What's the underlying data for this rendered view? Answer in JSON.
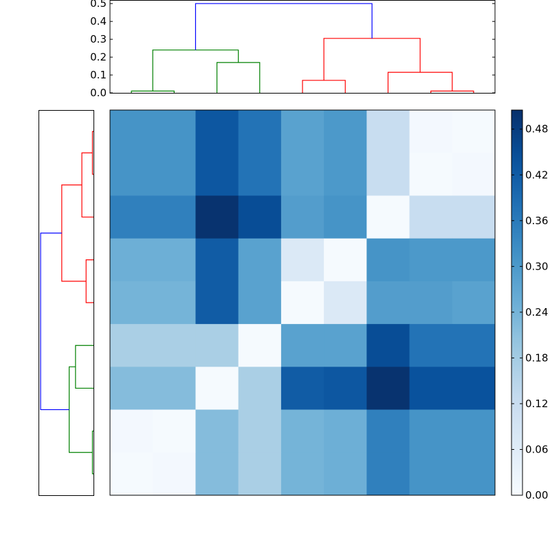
{
  "chart_data": [
    {
      "type": "dendrogram",
      "name": "top-dendrogram",
      "orientation": "top",
      "ylim": [
        0,
        0.52
      ],
      "yticks": [
        "0.0",
        "0.1",
        "0.2",
        "0.3",
        "0.4",
        "0.5"
      ],
      "ytick_values": [
        0,
        0.1,
        0.2,
        0.3,
        0.4,
        0.5
      ],
      "xlim": [
        0,
        90
      ],
      "links": [
        {
          "icoord": [
            5,
            5,
            15,
            15
          ],
          "dcoord": [
            0,
            0.01,
            0.01,
            0
          ],
          "color": "#008000"
        },
        {
          "icoord": [
            25,
            25,
            35,
            35
          ],
          "dcoord": [
            0,
            0.17,
            0.17,
            0
          ],
          "color": "#008000"
        },
        {
          "icoord": [
            10,
            10,
            30,
            30
          ],
          "dcoord": [
            0.01,
            0.24,
            0.24,
            0.17
          ],
          "color": "#008000"
        },
        {
          "icoord": [
            45,
            45,
            55,
            55
          ],
          "dcoord": [
            0,
            0.07,
            0.07,
            0
          ],
          "color": "#ff0000"
        },
        {
          "icoord": [
            75,
            75,
            85,
            85
          ],
          "dcoord": [
            0,
            0.01,
            0.01,
            0
          ],
          "color": "#ff0000"
        },
        {
          "icoord": [
            65,
            65,
            80,
            80
          ],
          "dcoord": [
            0,
            0.115,
            0.115,
            0.01
          ],
          "color": "#ff0000"
        },
        {
          "icoord": [
            50,
            50,
            72.5,
            72.5
          ],
          "dcoord": [
            0.07,
            0.305,
            0.305,
            0.115
          ],
          "color": "#ff0000"
        },
        {
          "icoord": [
            20,
            20,
            61.25,
            61.25
          ],
          "dcoord": [
            0.24,
            0.5,
            0.5,
            0.305
          ],
          "color": "#0000ff"
        }
      ]
    },
    {
      "type": "dendrogram",
      "name": "left-dendrogram",
      "orientation": "left",
      "xlim": [
        0.52,
        0
      ],
      "ylim": [
        0,
        90
      ],
      "links": [
        {
          "icoord": [
            5,
            5,
            15,
            15
          ],
          "dcoord": [
            0,
            0.01,
            0.01,
            0
          ],
          "color": "#ff0000"
        },
        {
          "icoord": [
            10,
            10,
            25,
            25
          ],
          "dcoord": [
            0.01,
            0.11,
            0.11,
            0
          ],
          "color": "#ff0000"
        },
        {
          "icoord": [
            35,
            35,
            45,
            45
          ],
          "dcoord": [
            0,
            0.07,
            0.07,
            0
          ],
          "color": "#ff0000"
        },
        {
          "icoord": [
            17.5,
            17.5,
            40,
            40
          ],
          "dcoord": [
            0.11,
            0.3,
            0.3,
            0.07
          ],
          "color": "#ff0000"
        },
        {
          "icoord": [
            55,
            55,
            65,
            65
          ],
          "dcoord": [
            0,
            0.17,
            0.17,
            0
          ],
          "color": "#008000"
        },
        {
          "icoord": [
            75,
            75,
            85,
            85
          ],
          "dcoord": [
            0,
            0.01,
            0.01,
            0
          ],
          "color": "#008000"
        },
        {
          "icoord": [
            60,
            60,
            80,
            80
          ],
          "dcoord": [
            0.17,
            0.23,
            0.23,
            0.01
          ],
          "color": "#008000"
        },
        {
          "icoord": [
            28.75,
            28.75,
            70,
            70
          ],
          "dcoord": [
            0.3,
            0.5,
            0.5,
            0.23
          ],
          "color": "#0000ff"
        }
      ]
    },
    {
      "type": "heatmap",
      "name": "distance-matrix",
      "colormap": "Blues",
      "vmin": 0,
      "vmax": 0.505,
      "values": [
        [
          0.31,
          0.31,
          0.43,
          0.375,
          0.28,
          0.3,
          0.12,
          0.01,
          0.005
        ],
        [
          0.31,
          0.31,
          0.43,
          0.375,
          0.28,
          0.3,
          0.12,
          0.005,
          0.01
        ],
        [
          0.35,
          0.35,
          0.5,
          0.45,
          0.29,
          0.31,
          0.005,
          0.12,
          0.12
        ],
        [
          0.25,
          0.25,
          0.42,
          0.28,
          0.07,
          0.005,
          0.31,
          0.3,
          0.3
        ],
        [
          0.24,
          0.24,
          0.42,
          0.28,
          0.005,
          0.07,
          0.29,
          0.29,
          0.28
        ],
        [
          0.17,
          0.17,
          0.17,
          0.005,
          0.28,
          0.28,
          0.45,
          0.375,
          0.375
        ],
        [
          0.22,
          0.22,
          0.005,
          0.17,
          0.42,
          0.43,
          0.5,
          0.44,
          0.44
        ],
        [
          0.01,
          0.005,
          0.22,
          0.17,
          0.24,
          0.25,
          0.35,
          0.31,
          0.31
        ],
        [
          0.005,
          0.01,
          0.22,
          0.17,
          0.24,
          0.25,
          0.35,
          0.31,
          0.31
        ]
      ]
    },
    {
      "type": "colorbar",
      "name": "colorbar",
      "range": [
        0,
        0.505
      ],
      "ticks": [
        "0.00",
        "0.06",
        "0.12",
        "0.18",
        "0.24",
        "0.30",
        "0.36",
        "0.42",
        "0.48"
      ],
      "tick_values": [
        0,
        0.06,
        0.12,
        0.18,
        0.24,
        0.3,
        0.36,
        0.42,
        0.48
      ]
    }
  ]
}
